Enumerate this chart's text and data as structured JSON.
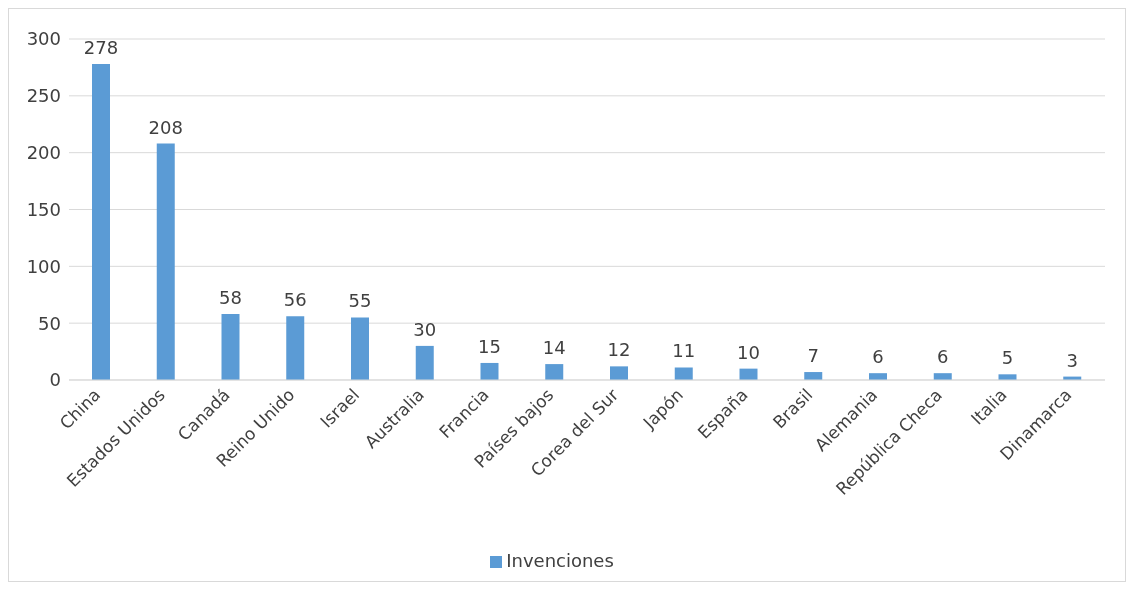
{
  "chart_data": {
    "type": "bar",
    "categories": [
      "China",
      "Estados Unidos",
      "Canadá",
      "Reino Unido",
      "Israel",
      "Australia",
      "Francia",
      "Países bajos",
      "Corea del Sur",
      "Japón",
      "España",
      "Brasil",
      "Alemania",
      "República Checa",
      "Italia",
      "Dinamarca"
    ],
    "series": [
      {
        "name": "Invenciones",
        "color": "#5b9bd5",
        "values": [
          278,
          208,
          58,
          56,
          55,
          30,
          15,
          14,
          12,
          11,
          10,
          7,
          6,
          6,
          5,
          3
        ]
      }
    ],
    "ylim": [
      0,
      300
    ],
    "yticks": [
      0,
      50,
      100,
      150,
      200,
      250,
      300
    ],
    "grid": "y",
    "legend": "bottom",
    "data_labels": true
  }
}
